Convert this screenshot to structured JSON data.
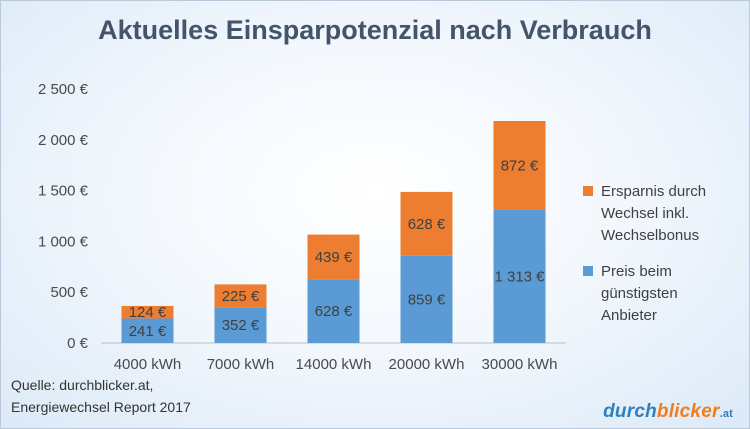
{
  "title": "Aktuelles Einsparpotenzial nach Verbrauch",
  "chart_data": {
    "type": "bar",
    "stacked": true,
    "title": "Aktuelles Einsparpotenzial nach Verbrauch",
    "categories": [
      "4000 kWh",
      "7000 kWh",
      "14000 kWh",
      "20000 kWh",
      "30000 kWh"
    ],
    "series": [
      {
        "name": "Preis beim günstigsten Anbieter",
        "color": "#5b9bd5",
        "values": [
          241,
          352,
          628,
          859,
          1313
        ],
        "labels": [
          "241 €",
          "352 €",
          "628 €",
          "859 €",
          "1 313 €"
        ]
      },
      {
        "name": "Ersparnis durch Wechsel inkl. Wechselbonus",
        "color": "#ed7d31",
        "values": [
          124,
          225,
          439,
          628,
          872
        ],
        "labels": [
          "124 €",
          "225 €",
          "439 €",
          "628 €",
          "872 €"
        ]
      }
    ],
    "ylim": [
      0,
      2500
    ],
    "yticks": [
      0,
      500,
      1000,
      1500,
      2000,
      2500
    ],
    "ytick_labels": [
      "0 €",
      "500 €",
      "1 000 €",
      "1 500 €",
      "2 000 €",
      "2 500 €"
    ],
    "grid": false,
    "legend_position": "right"
  },
  "legend": {
    "items": [
      {
        "label": "Ersparnis durch\nWechsel inkl.\nWechselbonus",
        "color": "#ed7d31"
      },
      {
        "label": "Preis beim\ngünstigsten\nAnbieter",
        "color": "#5b9bd5"
      }
    ]
  },
  "source": "Quelle: durchblicker.at,\nEnergiewechsel Report 2017",
  "brand": {
    "part1": "durch",
    "part2": "blicker",
    "part3": ".at"
  }
}
